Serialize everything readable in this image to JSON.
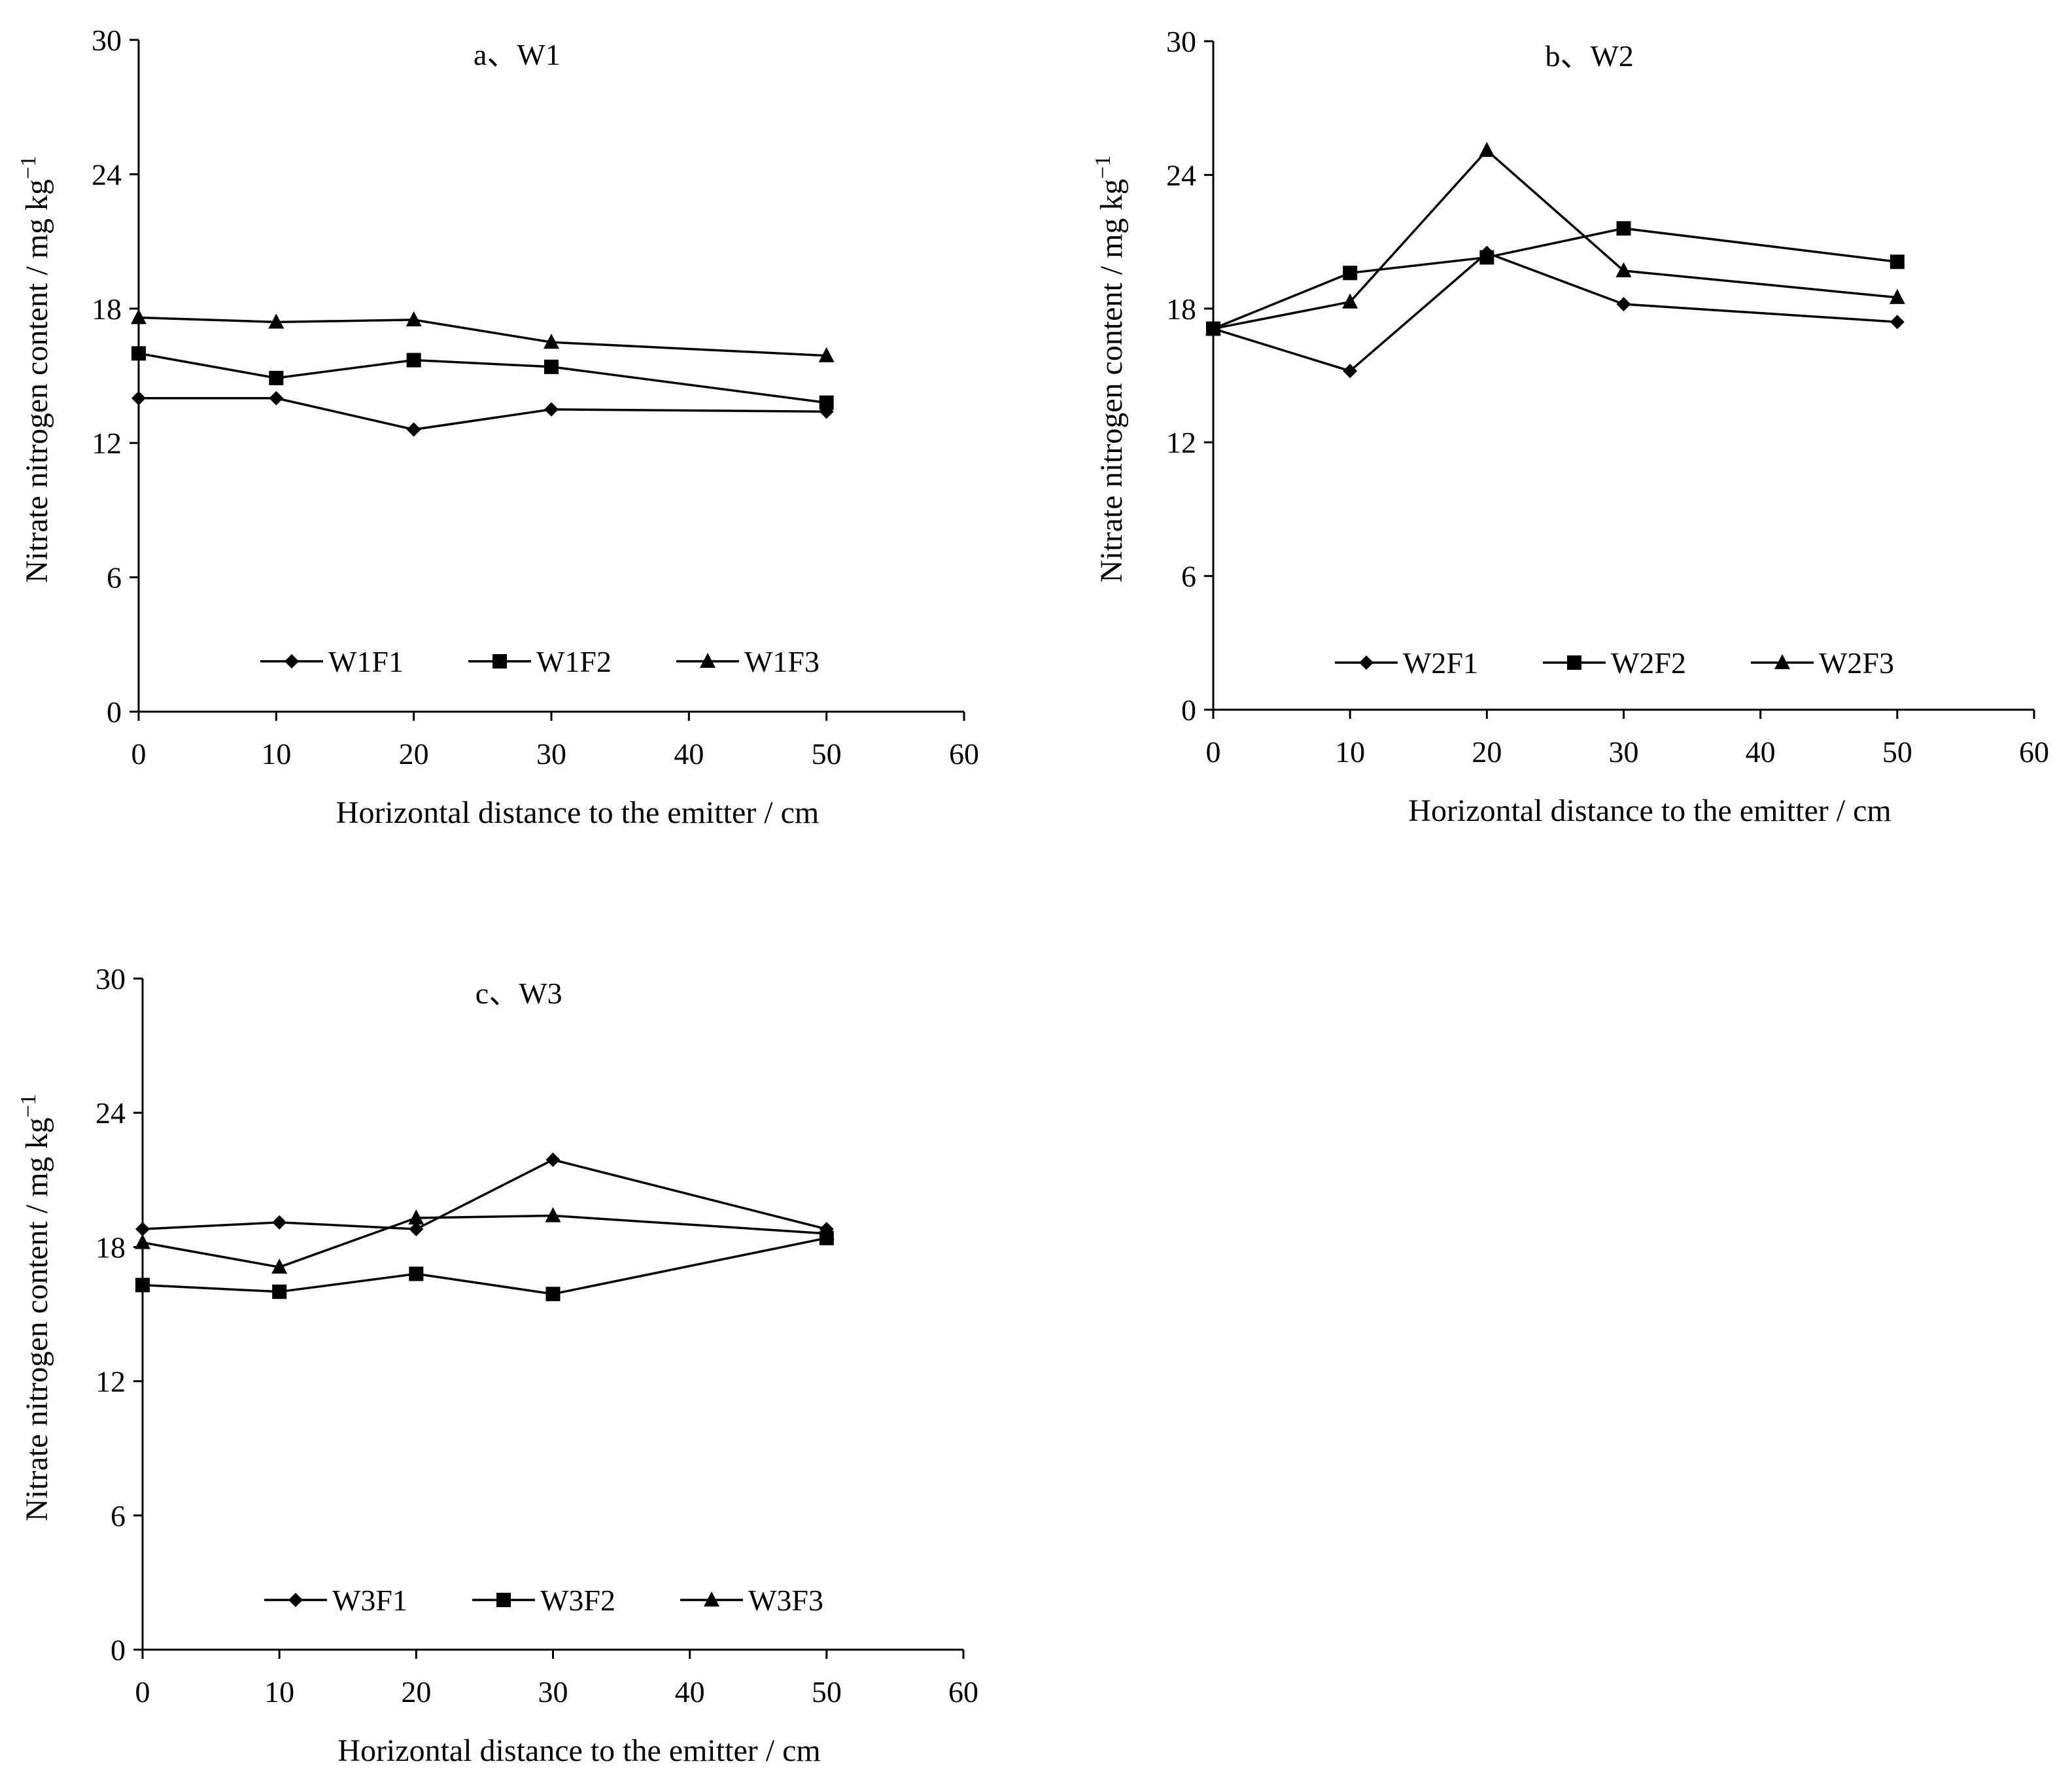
{
  "chart_data": [
    {
      "type": "line",
      "title": "a、W1",
      "xlabel": "Horizontal distance to the emitter / cm",
      "ylabel": "Nitrate nitrogen content / mg kg",
      "ylabel_sup": "−1",
      "xlim": [
        0,
        60
      ],
      "ylim": [
        0,
        30
      ],
      "xticks": [
        "0",
        "10",
        "20",
        "30",
        "40",
        "50",
        "60"
      ],
      "yticks": [
        "0",
        "6",
        "12",
        "18",
        "24",
        "30"
      ],
      "grid": false,
      "legend_position": "lower-center",
      "x": [
        0,
        10,
        20,
        30,
        50
      ],
      "series": [
        {
          "name": "W1F1",
          "marker": "diamond",
          "values": [
            14.0,
            14.0,
            12.6,
            13.5,
            13.4
          ]
        },
        {
          "name": "W1F2",
          "marker": "square",
          "values": [
            16.0,
            14.9,
            15.7,
            15.4,
            13.8
          ]
        },
        {
          "name": "W1F3",
          "marker": "triangle",
          "values": [
            17.6,
            17.4,
            17.5,
            16.5,
            15.9
          ]
        }
      ]
    },
    {
      "type": "line",
      "title": "b、W2",
      "xlabel": "Horizontal distance to the emitter / cm",
      "ylabel": "Nitrate nitrogen content / mg kg",
      "ylabel_sup": "−1",
      "xlim": [
        0,
        60
      ],
      "ylim": [
        0,
        30
      ],
      "xticks": [
        "0",
        "10",
        "20",
        "30",
        "40",
        "50",
        "60"
      ],
      "yticks": [
        "0",
        "6",
        "12",
        "18",
        "24",
        "30"
      ],
      "grid": false,
      "legend_position": "lower-center",
      "x": [
        0,
        10,
        20,
        30,
        50
      ],
      "series": [
        {
          "name": "W2F1",
          "marker": "diamond",
          "values": [
            17.1,
            15.2,
            20.5,
            18.2,
            17.4
          ]
        },
        {
          "name": "W2F2",
          "marker": "square",
          "values": [
            17.1,
            19.6,
            20.3,
            21.6,
            20.1
          ]
        },
        {
          "name": "W2F3",
          "marker": "triangle",
          "values": [
            17.1,
            18.3,
            25.1,
            19.7,
            18.5
          ]
        }
      ]
    },
    {
      "type": "line",
      "title": "c、W3",
      "xlabel": "Horizontal distance to the emitter / cm",
      "ylabel": "Nitrate nitrogen content / mg kg",
      "ylabel_sup": "−1",
      "xlim": [
        0,
        60
      ],
      "ylim": [
        0,
        30
      ],
      "xticks": [
        "0",
        "10",
        "20",
        "30",
        "40",
        "50",
        "60"
      ],
      "yticks": [
        "0",
        "6",
        "12",
        "18",
        "24",
        "30"
      ],
      "grid": false,
      "legend_position": "lower-center",
      "x": [
        0,
        10,
        20,
        30,
        50
      ],
      "series": [
        {
          "name": "W3F1",
          "marker": "diamond",
          "values": [
            18.8,
            19.1,
            18.8,
            21.9,
            18.8
          ]
        },
        {
          "name": "W3F2",
          "marker": "square",
          "values": [
            16.3,
            16.0,
            16.8,
            15.9,
            18.4
          ]
        },
        {
          "name": "W3F3",
          "marker": "triangle",
          "values": [
            18.2,
            17.1,
            19.3,
            19.4,
            18.6
          ]
        }
      ]
    }
  ]
}
